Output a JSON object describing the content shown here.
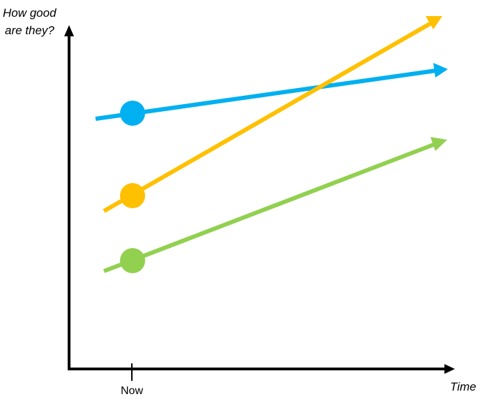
{
  "y_axis": {
    "label_lines": [
      "How good",
      "are they?"
    ]
  },
  "x_axis": {
    "label": "Time",
    "tick_label": "Now"
  },
  "colors": {
    "axis": "#000000",
    "blue": "#00b0f0",
    "orange": "#ffc000",
    "green": "#92d050"
  },
  "lines": [
    {
      "name": "blue-line",
      "color": "blue"
    },
    {
      "name": "orange-line",
      "color": "orange"
    },
    {
      "name": "green-line",
      "color": "green"
    }
  ]
}
